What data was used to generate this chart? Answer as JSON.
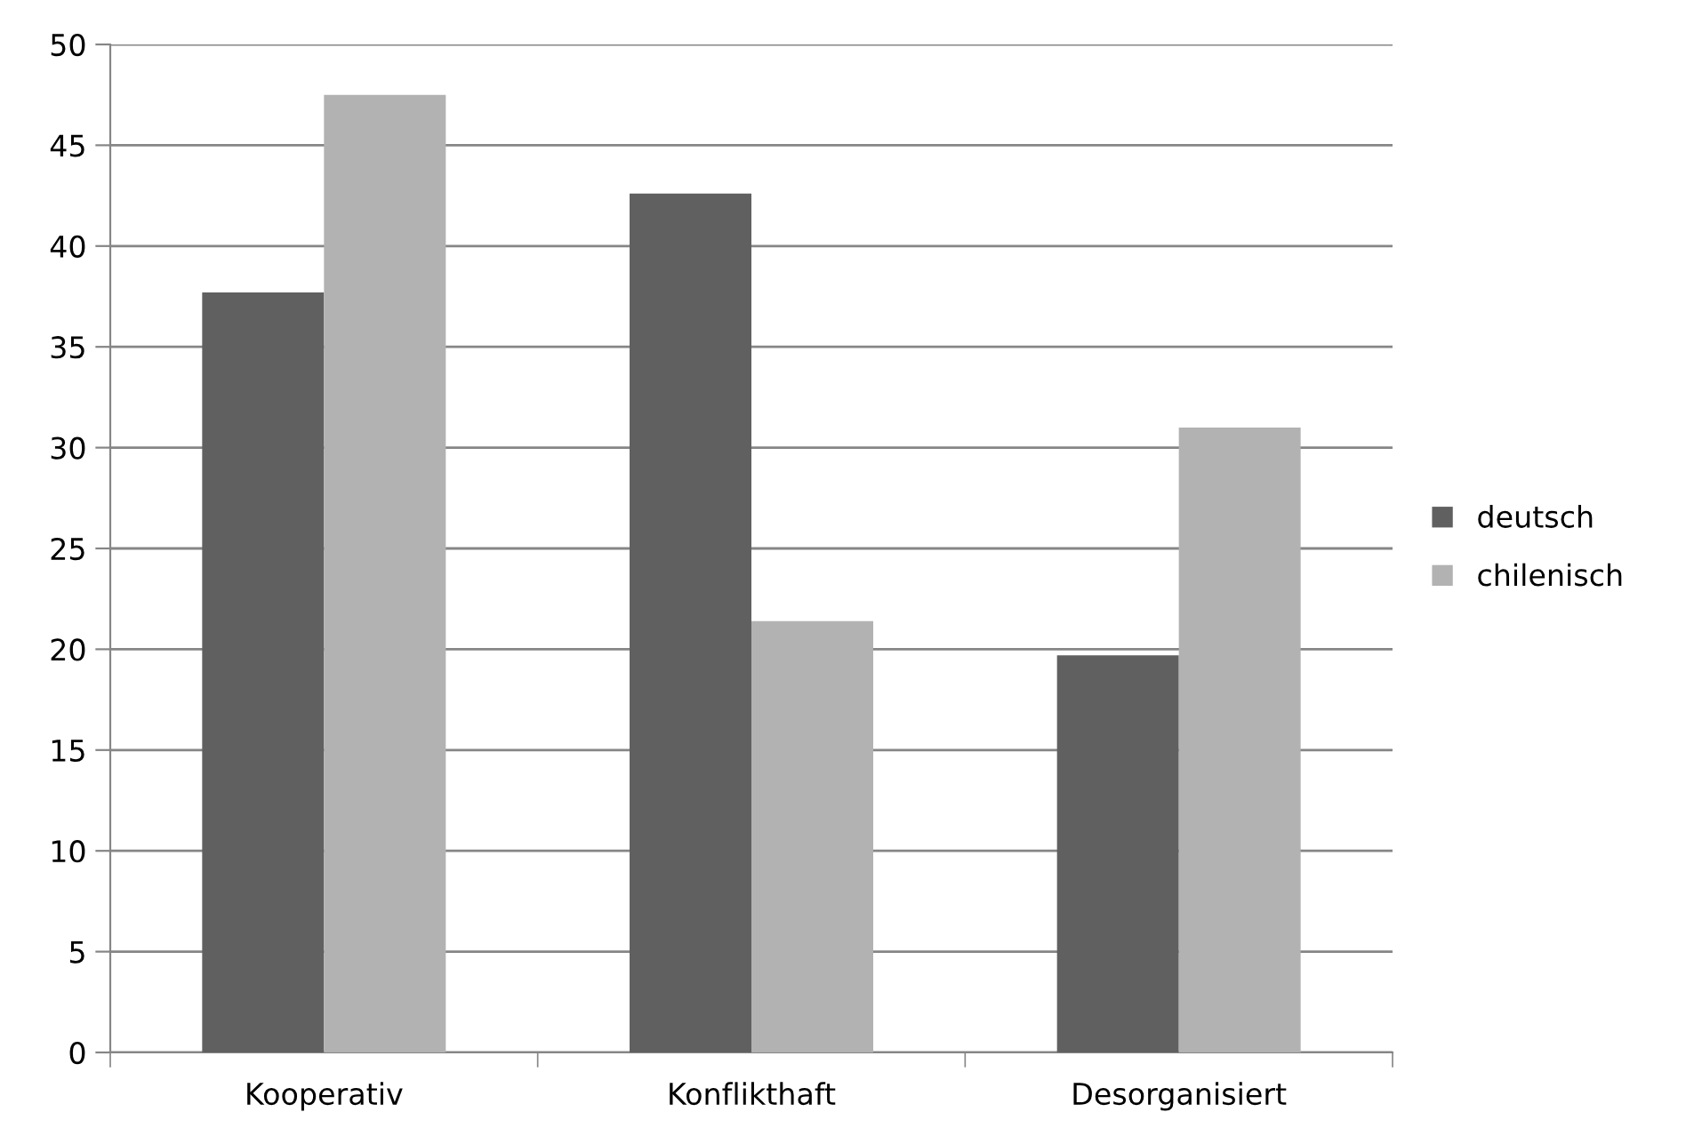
{
  "chart_data": {
    "type": "bar",
    "categories": [
      "Kooperativ",
      "Konflikthaft",
      "Desorganisiert"
    ],
    "series": [
      {
        "name": "deutsch",
        "color": "#606060",
        "values": [
          37.7,
          42.6,
          19.7
        ]
      },
      {
        "name": "chilenisch",
        "color": "#b2b2b2",
        "values": [
          47.5,
          21.4,
          31.0
        ]
      }
    ],
    "ylim": [
      0,
      50
    ],
    "yticks": [
      0,
      5,
      10,
      15,
      20,
      25,
      30,
      35,
      40,
      45,
      50
    ],
    "grid": "y",
    "legend": "right"
  }
}
